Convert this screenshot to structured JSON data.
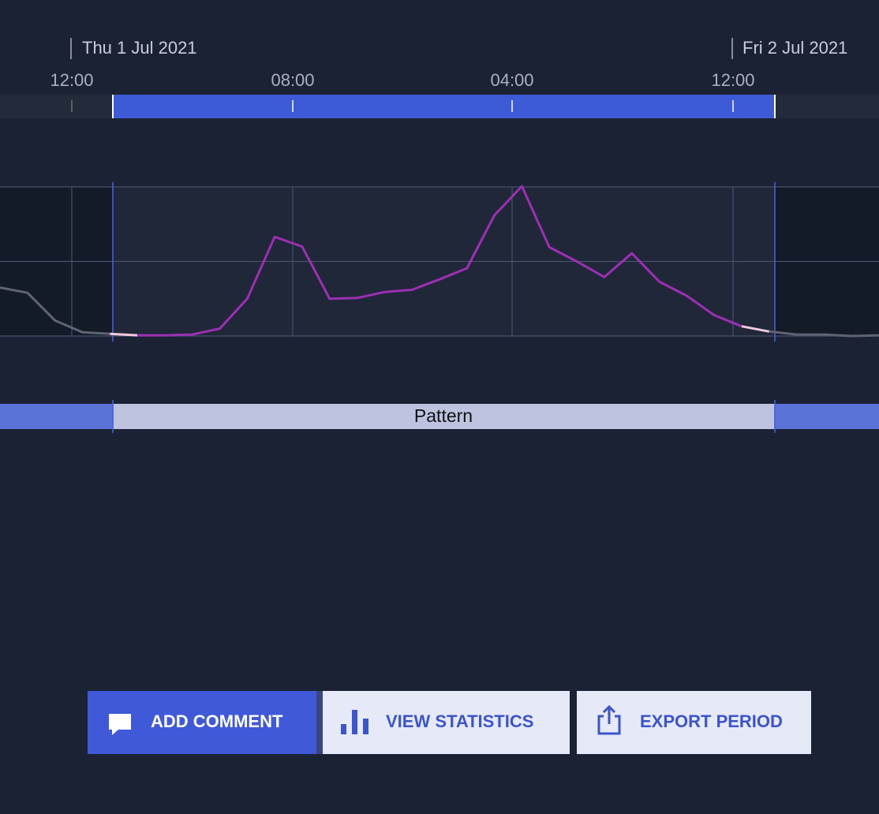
{
  "timeline": {
    "dates": [
      "Thu 1 Jul 2021",
      "Fri 2 Jul 2021"
    ],
    "times": [
      "12:00",
      "08:00",
      "04:00",
      "12:00"
    ]
  },
  "chart_data": {
    "type": "line",
    "series": [
      {
        "color": "#9c2fb4",
        "values": [
          0.65,
          0.58,
          0.21,
          0.05,
          0.03,
          0.01,
          0.01,
          0.02,
          0.1,
          0.5,
          1.33,
          1.2,
          0.5,
          0.51,
          0.59,
          0.62,
          0.76,
          0.91,
          1.62,
          2.01,
          1.19,
          1.0,
          0.79,
          1.11,
          0.73,
          0.54,
          0.28,
          0.13,
          0.06,
          0.02,
          0.02,
          0,
          0.01
        ]
      }
    ],
    "ylim": [
      0,
      2
    ],
    "yticks": [
      0,
      1,
      2
    ],
    "grid": true
  },
  "range_bar": {
    "label": "Pattern"
  },
  "buttons": [
    "ADD COMMENT",
    "VIEW STATISTICS",
    "EXPORT PERIOD"
  ]
}
